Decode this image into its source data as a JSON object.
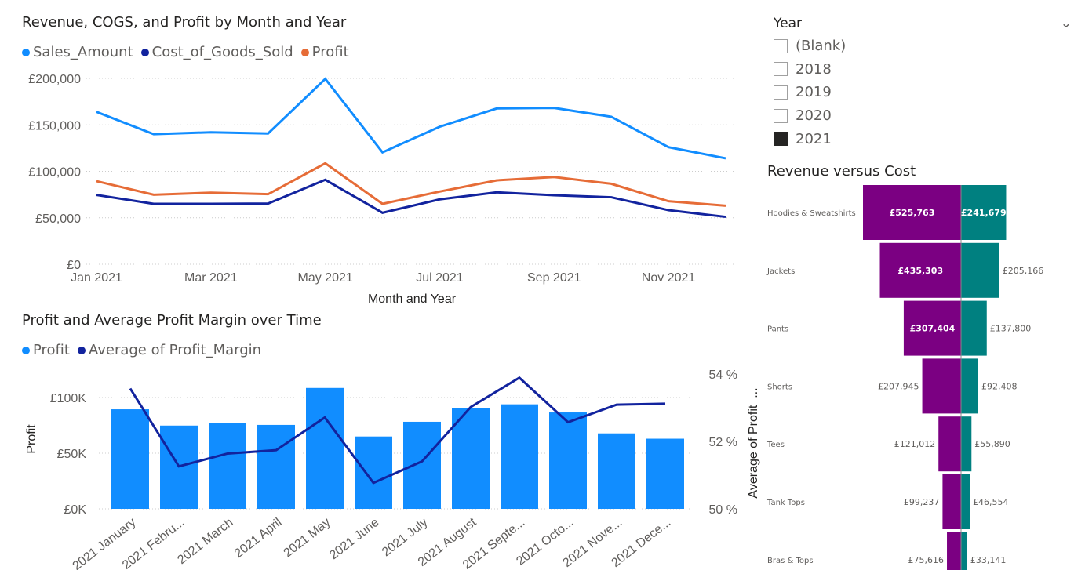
{
  "chart_data": [
    {
      "type": "line",
      "title": "Revenue, COGS, and Profit by Month and Year",
      "xlabel": "Month and Year",
      "ylabel": "",
      "ylim": [
        0,
        200000
      ],
      "yticks": [
        "£0",
        "£50,000",
        "£100,000",
        "£150,000",
        "£200,000"
      ],
      "x": [
        "Jan 2021",
        "Feb 2021",
        "Mar 2021",
        "Apr 2021",
        "May 2021",
        "Jun 2021",
        "Jul 2021",
        "Aug 2021",
        "Sep 2021",
        "Oct 2021",
        "Nov 2021",
        "Dec 2021"
      ],
      "xticks": [
        "Jan 2021",
        "Mar 2021",
        "May 2021",
        "Jul 2021",
        "Sep 2021",
        "Nov 2021"
      ],
      "series": [
        {
          "name": "Sales_Amount",
          "color": "#118dff",
          "values": [
            164000,
            140000,
            142000,
            140700,
            199500,
            120400,
            148000,
            167700,
            168200,
            158700,
            126000,
            114000
          ]
        },
        {
          "name": "Cost_of_Goods_Sold",
          "color": "#12239e",
          "values": [
            74600,
            65000,
            65000,
            65300,
            90900,
            55400,
            69800,
            77400,
            74300,
            72100,
            58200,
            51000
          ]
        },
        {
          "name": "Profit",
          "color": "#e66c37",
          "values": [
            89400,
            74800,
            77000,
            75400,
            108600,
            65000,
            78200,
            90300,
            93900,
            86600,
            67800,
            63000
          ]
        }
      ],
      "legend": "top-left",
      "grid": true
    },
    {
      "type": "bar+line",
      "title": "Profit and Average Profit Margin over Time",
      "ylabel": "Profit",
      "y2label": "Average of Profit_...",
      "ylim": [
        0,
        120000
      ],
      "yticks": [
        "£0K",
        "£50K",
        "£100K"
      ],
      "y2lim": [
        50,
        54
      ],
      "y2ticks": [
        "50 %",
        "52 %",
        "54 %"
      ],
      "categories": [
        "2021 January",
        "2021 Febru...",
        "2021 March",
        "2021 April",
        "2021 May",
        "2021 June",
        "2021 July",
        "2021 August",
        "2021 Septe...",
        "2021 Octo...",
        "2021 Nove...",
        "2021 Dece..."
      ],
      "series": [
        {
          "name": "Profit",
          "type": "bar",
          "color": "#118dff",
          "values": [
            89400,
            74800,
            77000,
            75400,
            108600,
            65000,
            78200,
            90300,
            93900,
            86600,
            67800,
            63000
          ]
        },
        {
          "name": "Average of Profit_Margin",
          "type": "line",
          "color": "#12239e",
          "values": [
            53.57,
            51.26,
            51.64,
            51.74,
            52.71,
            50.77,
            51.41,
            53.02,
            53.89,
            52.57,
            53.09,
            53.12
          ]
        }
      ],
      "legend": "top-left"
    },
    {
      "type": "bar",
      "title": "Revenue versus Cost",
      "orientation": "diverging",
      "categories": [
        "Hoodies & Sweatshirts",
        "Jackets",
        "Pants",
        "Shorts",
        "Tees",
        "Tank Tops",
        "Bras & Tops"
      ],
      "series": [
        {
          "name": "Revenue",
          "color": "#7b0082",
          "values": [
            525763,
            435303,
            307404,
            207945,
            121012,
            99237,
            75616
          ],
          "labels": [
            "£525,763",
            "£435,303",
            "£307,404",
            "£207,945",
            "£121,012",
            "£99,237",
            "£75,616"
          ]
        },
        {
          "name": "Cost",
          "color": "#008080",
          "values": [
            241679,
            205166,
            137800,
            92408,
            55890,
            46554,
            33141
          ],
          "labels": [
            "£241,679",
            "£205,166",
            "£137,800",
            "£92,408",
            "£55,890",
            "£46,554",
            "£33,141"
          ]
        }
      ]
    }
  ],
  "slicer": {
    "title": "Year",
    "options": [
      {
        "label": "(Blank)",
        "checked": false
      },
      {
        "label": "2018",
        "checked": false
      },
      {
        "label": "2019",
        "checked": false
      },
      {
        "label": "2020",
        "checked": false
      },
      {
        "label": "2021",
        "checked": true
      }
    ]
  }
}
